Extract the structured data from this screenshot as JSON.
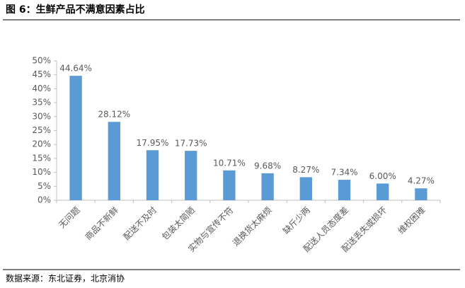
{
  "chart_data": {
    "type": "bar",
    "title": "图 6：生鲜产品不满意因素占比",
    "source": "数据来源：东北证券，北京消协",
    "categories": [
      "无问题",
      "商品不新鲜",
      "配送不及时",
      "包装太简陋",
      "实物与宣传不符",
      "退换货太麻烦",
      "缺斤少两",
      "配送人员态度差",
      "配送丢失或损坏",
      "维权困难"
    ],
    "values": [
      44.64,
      28.12,
      17.95,
      17.73,
      10.71,
      9.68,
      8.27,
      7.34,
      6.0,
      4.27
    ],
    "value_labels": [
      "44.64%",
      "28.12%",
      "17.95%",
      "17.73%",
      "10.71%",
      "9.68%",
      "8.27%",
      "7.34%",
      "6.00%",
      "4.27%"
    ],
    "color": "#5b9bd5",
    "ylim": [
      0,
      50
    ],
    "yticks": [
      {
        "value": 0,
        "label": "0%"
      },
      {
        "value": 5,
        "label": "5%"
      },
      {
        "value": 10,
        "label": "10%"
      },
      {
        "value": 15,
        "label": "15%"
      },
      {
        "value": 20,
        "label": "20%"
      },
      {
        "value": 25,
        "label": "25%"
      },
      {
        "value": 30,
        "label": "30%"
      },
      {
        "value": 35,
        "label": "35%"
      },
      {
        "value": 40,
        "label": "40%"
      },
      {
        "value": 45,
        "label": "45%"
      },
      {
        "value": 50,
        "label": "50%"
      }
    ],
    "grid": false
  }
}
